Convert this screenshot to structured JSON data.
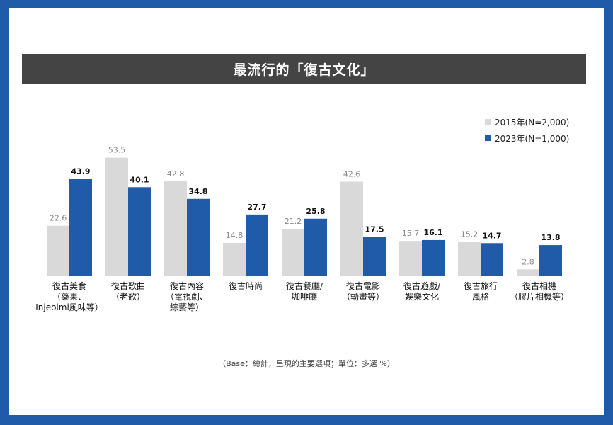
{
  "chart_data": {
    "type": "bar",
    "title": "最流行的「復古文化」",
    "categories": [
      [
        "復古美食",
        "（藥果、",
        "Injeolmi風味等）"
      ],
      [
        "復古歌曲",
        "（老歌）"
      ],
      [
        "復古內容",
        "（電視劇、",
        "綜藝等）"
      ],
      [
        "復古時尚"
      ],
      [
        "復古餐廳/",
        "咖啡廳"
      ],
      [
        "復古電影",
        "（動畫等）"
      ],
      [
        "復古遊戲/",
        "娛樂文化"
      ],
      [
        "復古旅行",
        "風格"
      ],
      [
        "復古相機",
        "（膠片相機等）"
      ]
    ],
    "series": [
      {
        "name": "2015年(N=2,000)",
        "color": "#d9d9d9",
        "values": [
          22.6,
          53.5,
          42.8,
          14.8,
          21.2,
          42.6,
          15.7,
          15.2,
          2.8
        ]
      },
      {
        "name": "2023年(N=1,000)",
        "color": "#1f5ba8",
        "values": [
          43.9,
          40.1,
          34.8,
          27.7,
          25.8,
          17.5,
          16.1,
          14.7,
          13.8
        ]
      }
    ],
    "ylim": [
      0,
      60
    ],
    "legend": "top-right",
    "grid": false,
    "note": "（Base：總計，呈現的主要選項；單位：多選 %）"
  }
}
